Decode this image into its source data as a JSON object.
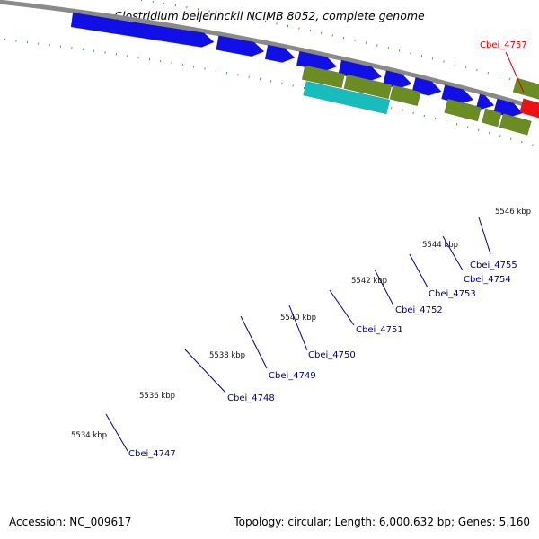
{
  "title": "Clostridium beijerinckii NCIMB 8052, complete genome",
  "footer": {
    "accession": "Accession: NC_009617",
    "summary": "Topology: circular; Length: 6,000,632 bp; Genes: 5,160"
  },
  "colors": {
    "cds_forward": "#1010e6",
    "cds_reverse": "#6b8c23",
    "rna": "#19bcbc",
    "highlight": "#ee1111",
    "backbone": "#8a8a8a",
    "tick": "#1a7a1a",
    "label_default": "#000080",
    "label_highlight": "#dd0000"
  },
  "scale": {
    "ticks": [
      "5534 kbp",
      "5536 kbp",
      "5538 kbp",
      "5540 kbp",
      "5542 kbp",
      "5544 kbp",
      "5546 kbp"
    ]
  },
  "genes": [
    {
      "name": "Cbei_4747",
      "type": "cds_forward"
    },
    {
      "name": "Cbei_4748",
      "type": "cds_forward"
    },
    {
      "name": "Cbei_4749",
      "type": "cds_forward"
    },
    {
      "name": "Cbei_4750",
      "type": "cds_reverse"
    },
    {
      "name": "Cbei_4751",
      "type": "rna"
    },
    {
      "name": "Cbei_4752",
      "type": "cds_reverse"
    },
    {
      "name": "Cbei_4753",
      "type": "cds_forward"
    },
    {
      "name": "Cbei_4754",
      "type": "cds_forward"
    },
    {
      "name": "Cbei_4755",
      "type": "cds_reverse"
    },
    {
      "name": "Cbei_4757",
      "type": "highlight"
    }
  ]
}
